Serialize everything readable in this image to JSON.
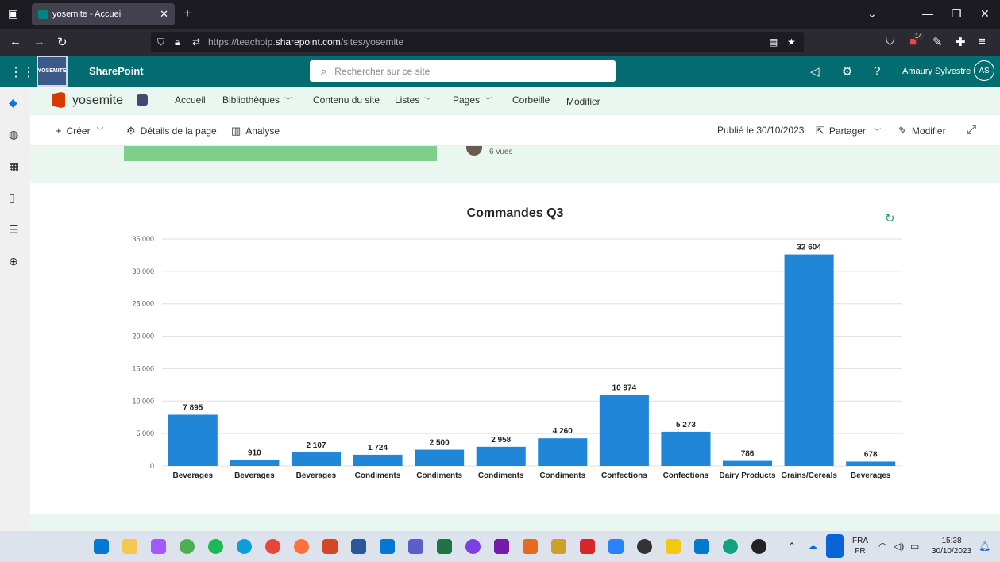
{
  "browser": {
    "tab_title": "yosemite - Accueil",
    "url_prefix": "https://teachoip.",
    "url_domain": "sharepoint.com",
    "url_path": "/sites/yosemite",
    "extension_badge": "14"
  },
  "suite": {
    "app_name": "SharePoint",
    "logo_text": "YOSEMITE",
    "search_placeholder": "Rechercher sur ce site",
    "user_name": "Amaury Sylvestre",
    "user_initials": "AS"
  },
  "site": {
    "name": "yosemite",
    "nav": [
      {
        "label": "Accueil",
        "dropdown": false
      },
      {
        "label": "Bibliothèques",
        "dropdown": true
      },
      {
        "label": "Contenu du site",
        "dropdown": false
      },
      {
        "label": "Listes",
        "dropdown": true
      },
      {
        "label": "Pages",
        "dropdown": true
      },
      {
        "label": "Corbeille",
        "dropdown": false
      },
      {
        "label": "Modifier",
        "dropdown": false
      }
    ]
  },
  "commands": {
    "create": "Créer",
    "page_details": "Détails de la page",
    "analytics": "Analyse",
    "published": "Publié le 30/10/2023",
    "share": "Partager",
    "edit": "Modifier"
  },
  "page": {
    "views": "6 vues"
  },
  "chart_data": {
    "type": "bar",
    "title": "Commandes Q3",
    "categories": [
      "Beverages",
      "Beverages",
      "Beverages",
      "Condiments",
      "Condiments",
      "Condiments",
      "Condiments",
      "Confections",
      "Confections",
      "Dairy Products",
      "Grains/Cereals",
      "Beverages"
    ],
    "values": [
      7895,
      910,
      2107,
      1724,
      2500,
      2958,
      4260,
      10974,
      5273,
      786,
      32604,
      678
    ],
    "value_labels": [
      "7 895",
      "910",
      "2 107",
      "1 724",
      "2 500",
      "2 958",
      "4 260",
      "10 974",
      "5 273",
      "786",
      "32 604",
      "678"
    ],
    "ylim": [
      0,
      35000
    ],
    "yticks": [
      0,
      5000,
      10000,
      15000,
      20000,
      25000,
      30000,
      35000
    ],
    "ytick_labels": [
      "0",
      "5 000",
      "10 000",
      "15 000",
      "20 000",
      "25 000",
      "30 000",
      "35 000"
    ],
    "bar_color": "#1f86d8",
    "grid": true,
    "xlabel": "",
    "ylabel": ""
  },
  "taskbar": {
    "lang_top": "FRA",
    "lang_bottom": "FR",
    "time": "15:38",
    "date": "30/10/2023"
  },
  "colors": {
    "suite_bar": "#036c70",
    "page_bg": "#eaf6f0",
    "accent_green": "#7fcf8a"
  }
}
